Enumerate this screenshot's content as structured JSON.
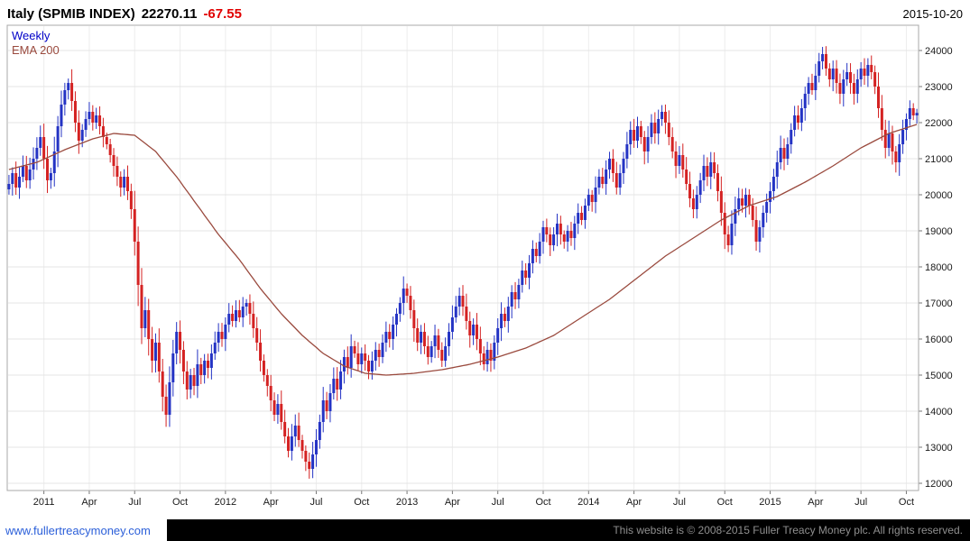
{
  "header": {
    "instrument": "Italy (SPMIB INDEX)",
    "price": "22270.11",
    "change": "-67.55",
    "date": "2015-10-20"
  },
  "legend": {
    "timeframe": "Weekly",
    "overlay": "EMA 200"
  },
  "footer": {
    "link": "www.fullertreacymoney.com",
    "copyright": "This website is © 2008-2015 Fuller Treacy Money plc. All rights reserved."
  },
  "colors": {
    "up": "#2433c4",
    "down": "#d42222",
    "ema": "#9a4a3e",
    "grid": "#e4e4e4",
    "vgrid": "#ededed",
    "border": "#a8a8a8",
    "axis_text": "#1a1a1a",
    "legend_weekly": "#0000c8",
    "change_red": "#e10000",
    "link_blue": "#2b5fd9",
    "footer_text": "#8f8f8f"
  },
  "chart_data": {
    "type": "candlestick",
    "timeframe": "weekly",
    "title": "Italy (SPMIB INDEX) weekly candles with 200-period EMA",
    "ylim": [
      12000,
      24000
    ],
    "grid": true,
    "legend_position": "top-left",
    "y_ticks": [
      24000,
      23000,
      22000,
      21000,
      20000,
      19000,
      18000,
      17000,
      16000,
      15000,
      14000,
      13000,
      12000
    ],
    "x_ticks": [
      {
        "label": "2011",
        "week": 10
      },
      {
        "label": "Apr",
        "week": 23
      },
      {
        "label": "Jul",
        "week": 36
      },
      {
        "label": "Oct",
        "week": 49
      },
      {
        "label": "2012",
        "week": 62
      },
      {
        "label": "Apr",
        "week": 75
      },
      {
        "label": "Jul",
        "week": 88
      },
      {
        "label": "Oct",
        "week": 101
      },
      {
        "label": "2013",
        "week": 114
      },
      {
        "label": "Apr",
        "week": 127
      },
      {
        "label": "Jul",
        "week": 140
      },
      {
        "label": "Oct",
        "week": 153
      },
      {
        "label": "2014",
        "week": 166
      },
      {
        "label": "Apr",
        "week": 179
      },
      {
        "label": "Jul",
        "week": 192
      },
      {
        "label": "Oct",
        "week": 205
      },
      {
        "label": "2015",
        "week": 218
      },
      {
        "label": "Apr",
        "week": 231
      },
      {
        "label": "Jul",
        "week": 244
      },
      {
        "label": "Oct",
        "week": 257
      }
    ],
    "weekly_close": [
      20300,
      20600,
      20200,
      20500,
      20800,
      20400,
      20700,
      21000,
      21300,
      21600,
      21000,
      20400,
      20600,
      21200,
      21900,
      22500,
      22900,
      23100,
      22600,
      22000,
      21500,
      21800,
      22100,
      22300,
      22000,
      22200,
      21900,
      21600,
      21400,
      21100,
      20800,
      20500,
      20200,
      20500,
      20100,
      19600,
      18700,
      17500,
      16300,
      16800,
      16000,
      15400,
      15900,
      15100,
      14400,
      13900,
      14800,
      15600,
      16200,
      15700,
      15100,
      14600,
      15000,
      14700,
      15300,
      15000,
      15400,
      15200,
      15600,
      15900,
      16200,
      16000,
      16400,
      16700,
      16500,
      16800,
      16600,
      16900,
      17000,
      16700,
      16300,
      15900,
      15400,
      15000,
      14700,
      14300,
      13900,
      14200,
      13700,
      13300,
      12900,
      13300,
      13600,
      13200,
      12900,
      12600,
      12400,
      12800,
      13200,
      13700,
      14300,
      14000,
      14500,
      14900,
      14600,
      15100,
      15500,
      15200,
      15800,
      15600,
      15300,
      15600,
      15400,
      15100,
      15400,
      15700,
      15500,
      15900,
      16200,
      16000,
      16400,
      16700,
      17000,
      17400,
      17200,
      16800,
      16300,
      15900,
      16200,
      15800,
      15500,
      15800,
      16100,
      15700,
      15400,
      15800,
      16200,
      16600,
      16900,
      17200,
      16900,
      16500,
      16100,
      16400,
      16000,
      15600,
      15300,
      15700,
      15400,
      15900,
      16300,
      16700,
      16500,
      16900,
      17300,
      17100,
      17500,
      17900,
      17700,
      18100,
      18500,
      18300,
      18700,
      19100,
      18900,
      18600,
      18900,
      19200,
      18900,
      18700,
      19000,
      18800,
      19200,
      19500,
      19300,
      19700,
      20000,
      19800,
      20200,
      20500,
      20300,
      20700,
      21000,
      20600,
      20200,
      20600,
      21000,
      21400,
      21800,
      21500,
      21900,
      21600,
      21200,
      21600,
      22000,
      21700,
      22100,
      22300,
      22000,
      21600,
      21200,
      20800,
      21100,
      20700,
      20300,
      19900,
      19600,
      20000,
      20400,
      20800,
      20500,
      20900,
      20600,
      20100,
      19500,
      18900,
      18600,
      19200,
      19600,
      19900,
      19700,
      20000,
      19700,
      19300,
      18700,
      19100,
      19500,
      19800,
      20100,
      20500,
      20900,
      21300,
      21000,
      21400,
      21800,
      22200,
      22000,
      22400,
      22800,
      23100,
      22900,
      23300,
      23700,
      23900,
      23500,
      23200,
      23500,
      23100,
      22800,
      23200,
      23400,
      23100,
      22800,
      23200,
      23500,
      23300,
      23600,
      23400,
      23000,
      22400,
      21800,
      21300,
      21700,
      21200,
      20900,
      21400,
      21800,
      22100,
      22400,
      22200,
      22270.11
    ],
    "ema200_anchors": [
      [
        0,
        20700
      ],
      [
        8,
        20900
      ],
      [
        16,
        21250
      ],
      [
        24,
        21550
      ],
      [
        30,
        21700
      ],
      [
        36,
        21650
      ],
      [
        42,
        21200
      ],
      [
        48,
        20500
      ],
      [
        54,
        19700
      ],
      [
        60,
        18900
      ],
      [
        66,
        18200
      ],
      [
        72,
        17400
      ],
      [
        78,
        16700
      ],
      [
        84,
        16100
      ],
      [
        90,
        15600
      ],
      [
        96,
        15250
      ],
      [
        102,
        15050
      ],
      [
        108,
        15000
      ],
      [
        116,
        15050
      ],
      [
        124,
        15150
      ],
      [
        132,
        15300
      ],
      [
        140,
        15500
      ],
      [
        148,
        15750
      ],
      [
        156,
        16100
      ],
      [
        164,
        16600
      ],
      [
        172,
        17100
      ],
      [
        180,
        17700
      ],
      [
        188,
        18300
      ],
      [
        196,
        18800
      ],
      [
        204,
        19300
      ],
      [
        212,
        19700
      ],
      [
        220,
        19950
      ],
      [
        228,
        20350
      ],
      [
        236,
        20800
      ],
      [
        244,
        21300
      ],
      [
        252,
        21700
      ],
      [
        260,
        21950
      ]
    ]
  }
}
